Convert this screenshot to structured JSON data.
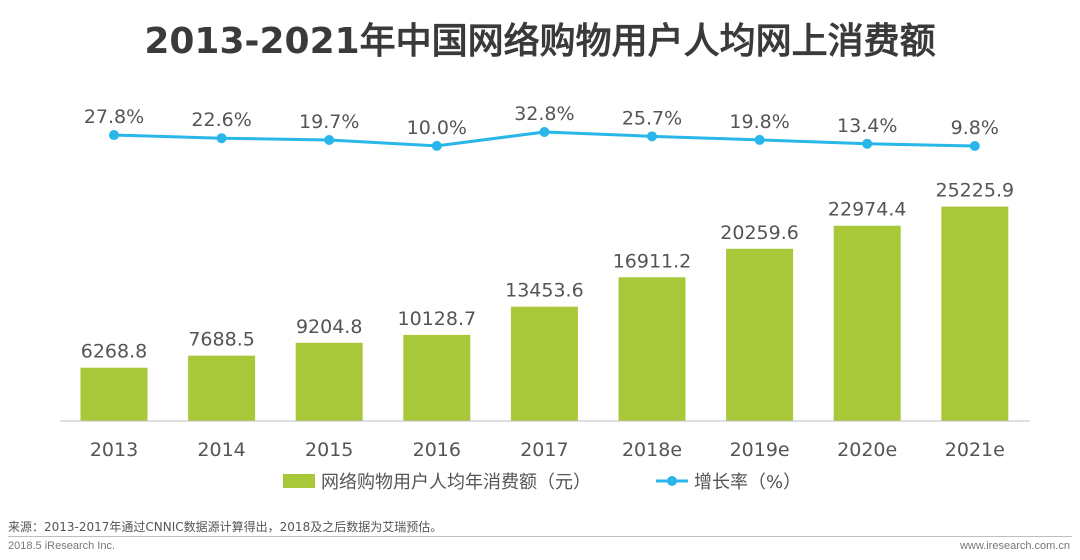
{
  "chart_data": {
    "type": "bar",
    "title": "2013-2021年中国网络购物用户人均网上消费额",
    "categories": [
      "2013",
      "2014",
      "2015",
      "2016",
      "2017",
      "2018e",
      "2019e",
      "2020e",
      "2021e"
    ],
    "series": [
      {
        "name": "网络购物用户人均年消费额（元）",
        "type": "bar",
        "color": "#a8c83a",
        "values": [
          6268.8,
          7688.5,
          9204.8,
          10128.7,
          13453.6,
          16911.2,
          20259.6,
          22974.4,
          25225.9
        ],
        "labels": [
          "6268.8",
          "7688.5",
          "9204.8",
          "10128.7",
          "13453.6",
          "16911.2",
          "20259.6",
          "22974.4",
          "25225.9"
        ]
      },
      {
        "name": "增长率（%）",
        "type": "line",
        "color": "#29b6e8",
        "values": [
          27.8,
          22.6,
          19.7,
          10.0,
          32.8,
          25.7,
          19.8,
          13.4,
          9.8
        ],
        "labels": [
          "27.8%",
          "22.6%",
          "19.7%",
          "10.0%",
          "32.8%",
          "25.7%",
          "19.8%",
          "13.4%",
          "9.8%"
        ]
      }
    ],
    "ylim": [
      0,
      26000
    ],
    "xlabel": "",
    "ylabel": "",
    "legend": "bottom-center"
  },
  "footer": {
    "source": "来源：2013-2017年通过CNNIC数据源计算得出，2018及之后数据为艾瑞预估。",
    "copyright": "2018.5 iResearch Inc.",
    "website": "www.iresearch.com.cn"
  }
}
